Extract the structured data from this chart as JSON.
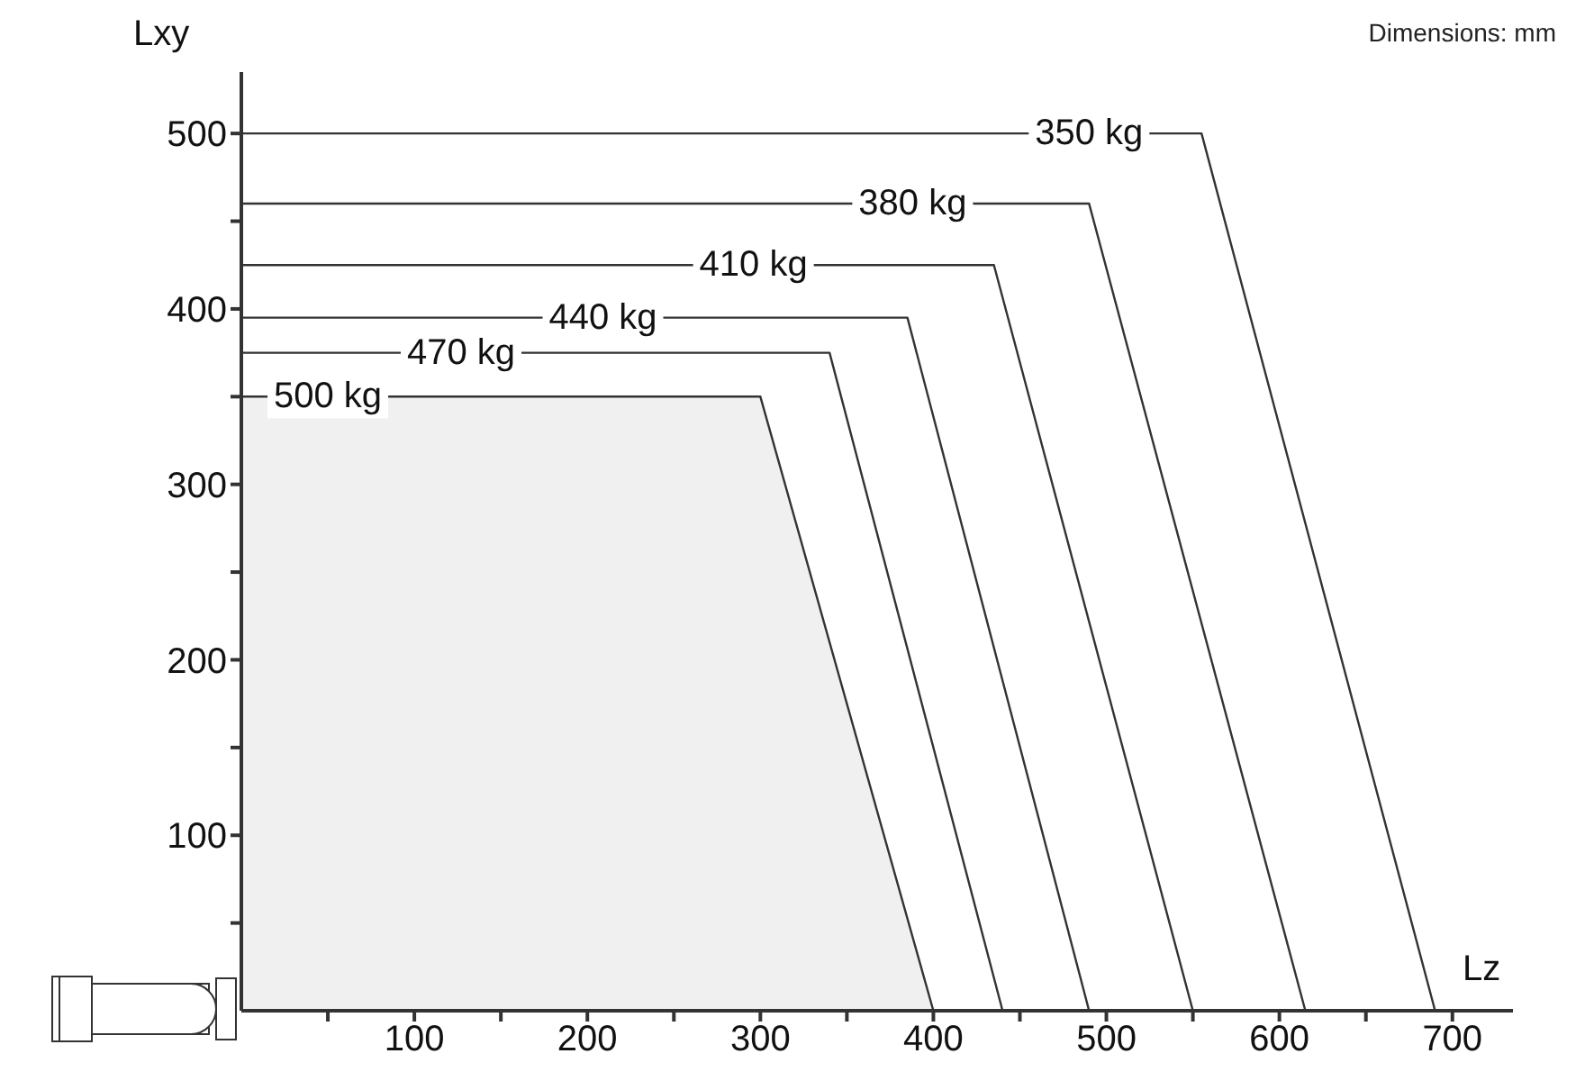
{
  "chart_data": {
    "type": "line",
    "xlabel": "Lz",
    "ylabel": "Lxy",
    "annotations": [
      "Dimensions: mm"
    ],
    "xlim": [
      0,
      735
    ],
    "ylim": [
      0,
      535
    ],
    "xticks": [
      {
        "value": 50,
        "label": null
      },
      100,
      {
        "value": 150,
        "label": null
      },
      200,
      {
        "value": 250,
        "label": null
      },
      300,
      {
        "value": 350,
        "label": null
      },
      400,
      {
        "value": 450,
        "label": null
      },
      500,
      {
        "value": 550,
        "label": null
      },
      600,
      {
        "value": 650,
        "label": null
      },
      700
    ],
    "yticks": [
      {
        "value": 50,
        "label": null
      },
      100,
      {
        "value": 150,
        "label": null
      },
      200,
      {
        "value": 250,
        "label": null
      },
      300,
      {
        "value": 350,
        "label": null
      },
      400,
      {
        "value": 450,
        "label": null
      },
      500
    ],
    "marker": "none",
    "line_style": "solid",
    "series": [
      {
        "name": "350 kg",
        "color": "#333333",
        "x": [
          0,
          555,
          690
        ],
        "values": [
          500,
          500,
          0
        ]
      },
      {
        "name": "380 kg",
        "color": "#333333",
        "x": [
          0,
          490,
          615
        ],
        "values": [
          460,
          460,
          0
        ]
      },
      {
        "name": "410 kg",
        "color": "#333333",
        "x": [
          0,
          435,
          550
        ],
        "values": [
          425,
          425,
          0
        ]
      },
      {
        "name": "440 kg",
        "color": "#333333",
        "x": [
          0,
          385,
          490
        ],
        "values": [
          395,
          395,
          0
        ]
      },
      {
        "name": "470 kg",
        "color": "#333333",
        "x": [
          0,
          340,
          440
        ],
        "values": [
          375,
          375,
          0
        ]
      },
      {
        "name": "500 kg",
        "type": "area",
        "color": "#333333",
        "x": [
          0,
          300,
          400
        ],
        "values": [
          350,
          350,
          0
        ]
      }
    ]
  }
}
